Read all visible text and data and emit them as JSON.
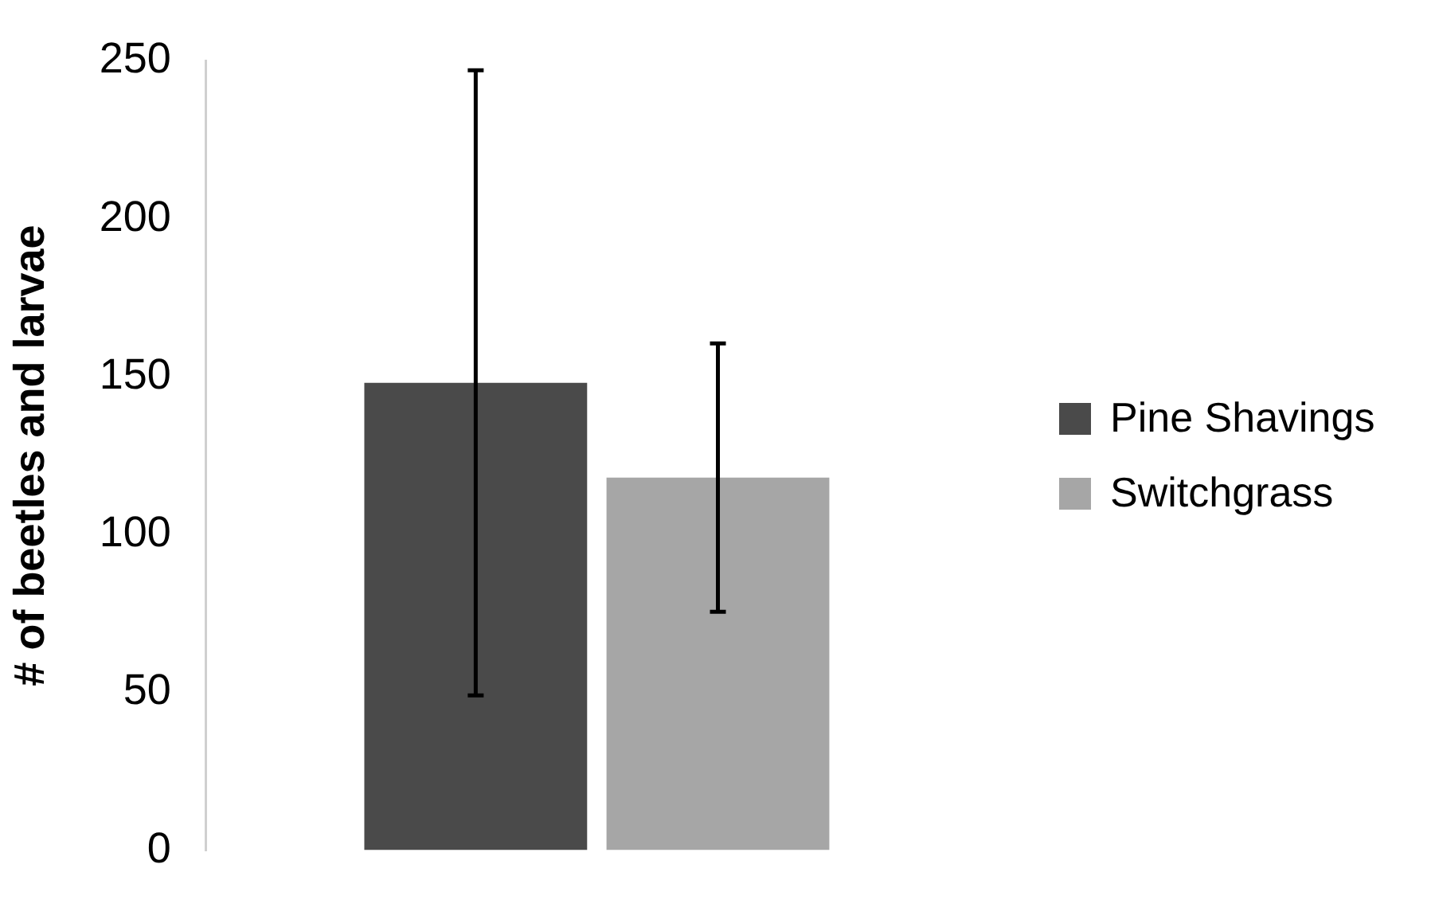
{
  "chart_data": {
    "type": "bar",
    "ylabel": "# of beetles and larvae",
    "categories": [
      null
    ],
    "series": [
      {
        "name": "Pine Shavings",
        "color": "#4a4a4a",
        "values": [
          148
        ],
        "errors": [
          99
        ]
      },
      {
        "name": "Switchgrass",
        "color": "#a6a6a6",
        "values": [
          118
        ],
        "errors": [
          42.5
        ]
      }
    ],
    "ylim": [
      0,
      250
    ],
    "yticks": [
      0,
      50,
      100,
      150,
      200,
      250
    ],
    "grid": false,
    "legend": "right"
  }
}
